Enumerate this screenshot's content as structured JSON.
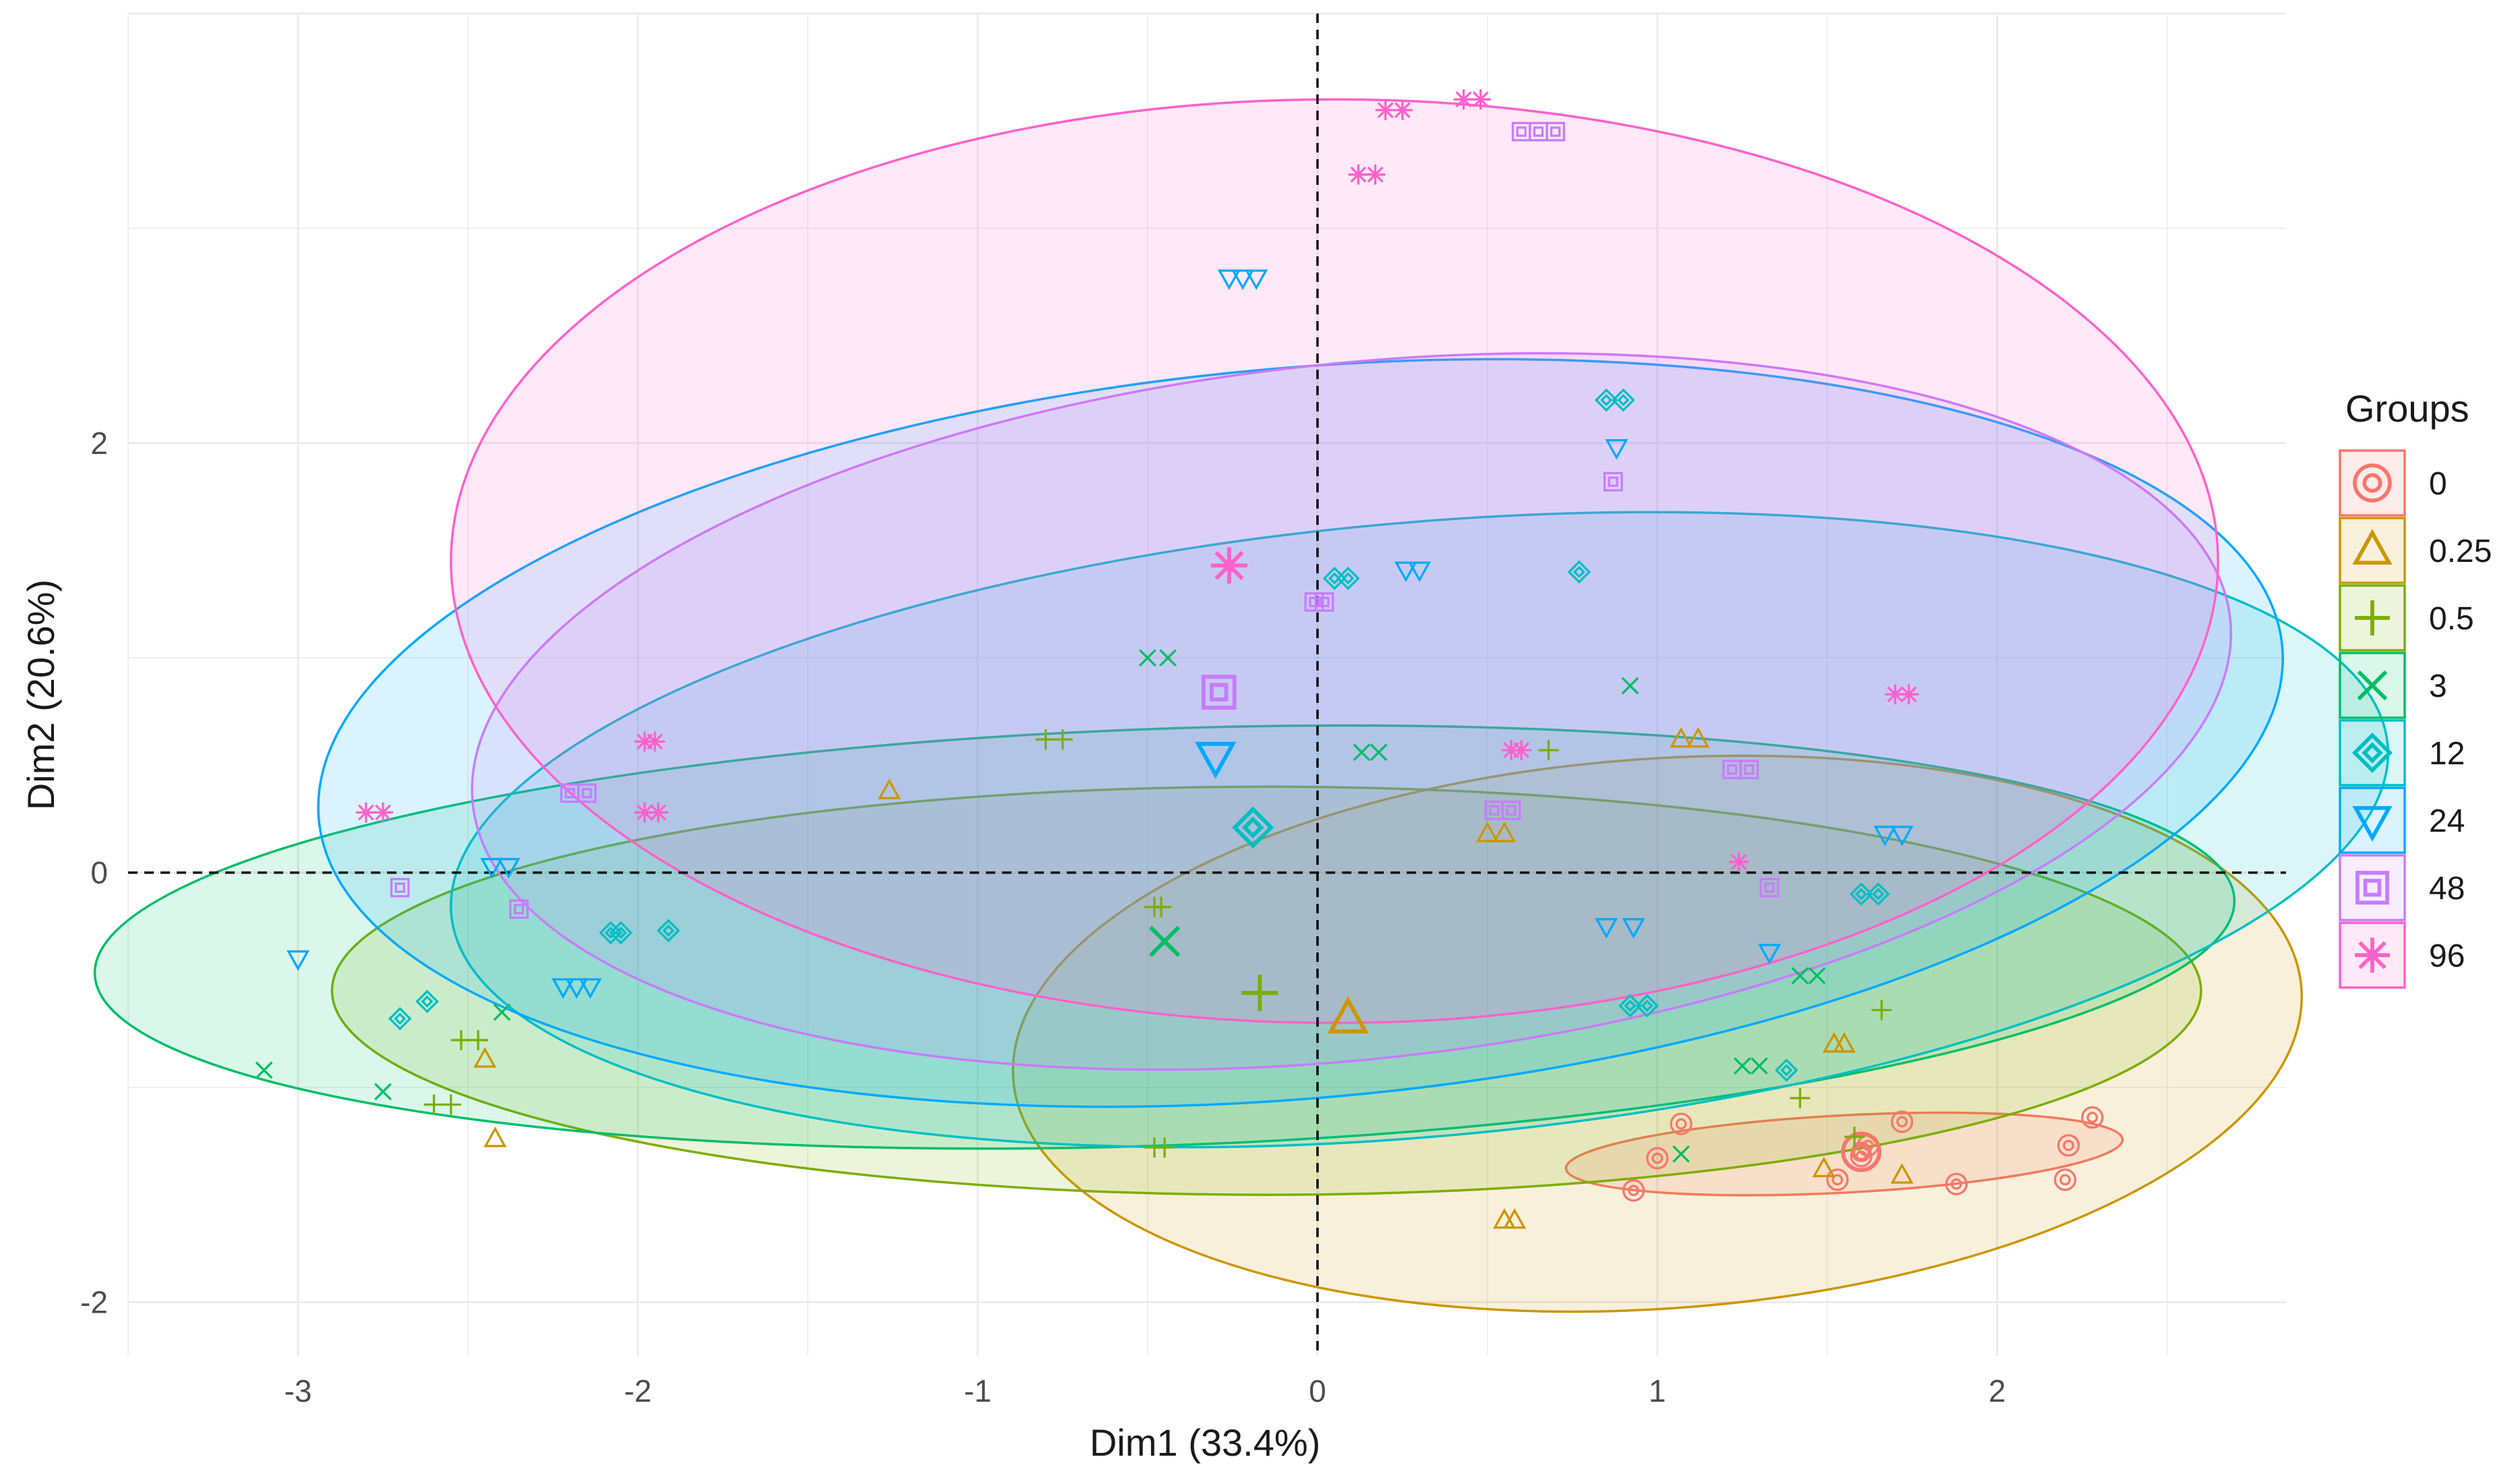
{
  "chart_data": {
    "type": "scatter",
    "title": "",
    "xlabel": "Dim1 (33.4%)",
    "ylabel": "Dim2 (20.6%)",
    "xlim": [
      -3.5,
      2.85
    ],
    "ylim": [
      -2.25,
      4.0
    ],
    "x_ticks": [
      -3,
      -2,
      -1,
      0,
      1,
      2
    ],
    "y_ticks": [
      -2,
      0,
      2
    ],
    "grid": true,
    "reference_lines": {
      "x": 0,
      "y": 0,
      "style": "dashed"
    },
    "legend": {
      "title": "Groups",
      "position": "right"
    },
    "series": [
      {
        "name": "0",
        "color": "#F8766D",
        "marker": "circle-dot",
        "ellipse": {
          "cx": 1.55,
          "cy": -1.31,
          "rx": 0.82,
          "ry": 0.18,
          "angle": -3
        },
        "points": [
          [
            1.0,
            -1.33
          ],
          [
            1.07,
            -1.17
          ],
          [
            0.93,
            -1.48
          ],
          [
            1.53,
            -1.43
          ],
          [
            1.6,
            -1.32
          ],
          [
            1.62,
            -1.27
          ],
          [
            1.72,
            -1.16
          ],
          [
            1.88,
            -1.45
          ],
          [
            2.21,
            -1.27
          ],
          [
            2.28,
            -1.14
          ],
          [
            2.2,
            -1.43
          ]
        ],
        "centroid": [
          1.6,
          -1.3
        ]
      },
      {
        "name": "0.25",
        "color": "#CD9600",
        "marker": "triangle",
        "ellipse": {
          "cx": 1.0,
          "cy": -0.75,
          "rx": 1.9,
          "ry": 1.28,
          "angle": -4
        },
        "points": [
          [
            -1.26,
            0.38
          ],
          [
            -2.45,
            -0.87
          ],
          [
            -2.42,
            -1.24
          ],
          [
            0.5,
            0.18
          ],
          [
            0.55,
            0.18
          ],
          [
            1.07,
            0.62
          ],
          [
            1.12,
            0.62
          ],
          [
            1.52,
            -0.8
          ],
          [
            1.55,
            -0.8
          ],
          [
            1.49,
            -1.38
          ],
          [
            1.72,
            -1.41
          ],
          [
            0.55,
            -1.62
          ],
          [
            0.58,
            -1.62
          ]
        ],
        "centroid": [
          0.09,
          -0.68
        ]
      },
      {
        "name": "0.5",
        "color": "#7CAE00",
        "marker": "plus",
        "ellipse": {
          "cx": -0.15,
          "cy": -0.55,
          "rx": 2.75,
          "ry": 0.95,
          "angle": 0
        },
        "points": [
          [
            -0.8,
            0.62
          ],
          [
            -0.75,
            0.62
          ],
          [
            -0.48,
            -0.16
          ],
          [
            -0.46,
            -0.16
          ],
          [
            -2.52,
            -0.78
          ],
          [
            -2.47,
            -0.78
          ],
          [
            -2.6,
            -1.08
          ],
          [
            -2.55,
            -1.08
          ],
          [
            -0.48,
            -1.28
          ],
          [
            -0.45,
            -1.28
          ],
          [
            0.68,
            0.57
          ],
          [
            1.42,
            -1.05
          ],
          [
            1.66,
            -0.64
          ],
          [
            1.58,
            -1.23
          ]
        ],
        "centroid": [
          -0.17,
          -0.56
        ]
      },
      {
        "name": "3",
        "color": "#00BE67",
        "marker": "x",
        "ellipse": {
          "cx": -0.45,
          "cy": -0.3,
          "rx": 3.15,
          "ry": 0.97,
          "angle": -2
        },
        "points": [
          [
            -3.1,
            -0.92
          ],
          [
            -2.75,
            -1.02
          ],
          [
            -2.4,
            -0.65
          ],
          [
            -0.5,
            1.0
          ],
          [
            -0.44,
            1.0
          ],
          [
            0.13,
            0.56
          ],
          [
            0.18,
            0.56
          ],
          [
            0.92,
            0.87
          ],
          [
            1.42,
            -0.48
          ],
          [
            1.47,
            -0.48
          ],
          [
            1.25,
            -0.9
          ],
          [
            1.3,
            -0.9
          ],
          [
            1.07,
            -1.31
          ]
        ],
        "centroid": [
          -0.45,
          -0.32
        ]
      },
      {
        "name": "12",
        "color": "#00BFC4",
        "marker": "diamond",
        "ellipse": {
          "cx": 0.3,
          "cy": 0.2,
          "rx": 2.86,
          "ry": 1.43,
          "angle": -5
        },
        "points": [
          [
            0.85,
            2.2
          ],
          [
            0.9,
            2.2
          ],
          [
            0.05,
            1.37
          ],
          [
            0.09,
            1.37
          ],
          [
            0.77,
            1.4
          ],
          [
            -2.7,
            -0.68
          ],
          [
            -2.62,
            -0.6
          ],
          [
            -2.08,
            -0.28
          ],
          [
            -2.05,
            -0.28
          ],
          [
            -1.91,
            -0.27
          ],
          [
            0.92,
            -0.62
          ],
          [
            0.97,
            -0.62
          ],
          [
            1.38,
            -0.92
          ],
          [
            1.6,
            -0.1
          ],
          [
            1.65,
            -0.1
          ]
        ],
        "centroid": [
          -0.19,
          0.21
        ]
      },
      {
        "name": "24",
        "color": "#00A9FF",
        "marker": "triangle-down",
        "ellipse": {
          "cx": -0.05,
          "cy": 0.65,
          "rx": 2.9,
          "ry": 1.7,
          "angle": -5
        },
        "points": [
          [
            -0.26,
            2.77
          ],
          [
            -0.22,
            2.77
          ],
          [
            -0.18,
            2.77
          ],
          [
            0.88,
            1.98
          ],
          [
            0.26,
            1.41
          ],
          [
            0.3,
            1.41
          ],
          [
            -2.43,
            0.03
          ],
          [
            -2.38,
            0.03
          ],
          [
            -3.0,
            -0.4
          ],
          [
            -2.22,
            -0.53
          ],
          [
            -2.18,
            -0.53
          ],
          [
            -2.14,
            -0.53
          ],
          [
            0.85,
            -0.25
          ],
          [
            0.93,
            -0.25
          ],
          [
            1.33,
            -0.37
          ],
          [
            1.67,
            0.18
          ],
          [
            1.72,
            0.18
          ]
        ],
        "centroid": [
          -0.3,
          0.54
        ]
      },
      {
        "name": "48",
        "color": "#C77CFF",
        "marker": "square-dot",
        "ellipse": {
          "cx": 0.1,
          "cy": 0.75,
          "rx": 2.6,
          "ry": 1.62,
          "angle": -6
        },
        "points": [
          [
            0.6,
            3.45
          ],
          [
            0.65,
            3.45
          ],
          [
            0.7,
            3.45
          ],
          [
            0.87,
            1.82
          ],
          [
            -0.01,
            1.26
          ],
          [
            0.02,
            1.26
          ],
          [
            -2.2,
            0.37
          ],
          [
            -2.15,
            0.37
          ],
          [
            -2.7,
            -0.07
          ],
          [
            -2.35,
            -0.17
          ],
          [
            0.52,
            0.29
          ],
          [
            0.57,
            0.29
          ],
          [
            1.22,
            0.48
          ],
          [
            1.27,
            0.48
          ],
          [
            1.33,
            -0.07
          ]
        ],
        "centroid": [
          -0.29,
          0.84
        ]
      },
      {
        "name": "96",
        "color": "#FF61CC",
        "marker": "asterisk",
        "ellipse": {
          "cx": 0.05,
          "cy": 1.45,
          "rx": 2.6,
          "ry": 2.15,
          "angle": 0
        },
        "points": [
          [
            0.2,
            3.55
          ],
          [
            0.25,
            3.55
          ],
          [
            0.43,
            3.6
          ],
          [
            0.48,
            3.6
          ],
          [
            0.12,
            3.25
          ],
          [
            0.17,
            3.25
          ],
          [
            -1.98,
            0.61
          ],
          [
            -1.95,
            0.61
          ],
          [
            -2.8,
            0.28
          ],
          [
            -2.75,
            0.28
          ],
          [
            -1.98,
            0.28
          ],
          [
            -1.94,
            0.28
          ],
          [
            0.57,
            0.57
          ],
          [
            0.6,
            0.57
          ],
          [
            1.24,
            0.05
          ],
          [
            1.7,
            0.83
          ],
          [
            1.74,
            0.83
          ]
        ],
        "centroid": [
          -0.26,
          1.43
        ]
      }
    ]
  }
}
